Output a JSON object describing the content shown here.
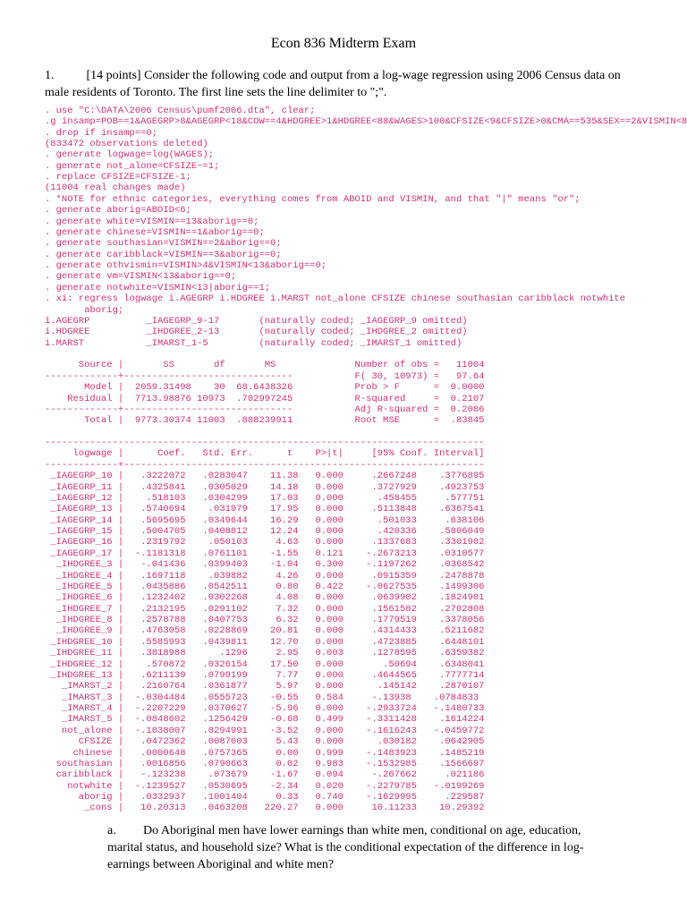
{
  "title": "Econ 836 Midterm Exam",
  "question": {
    "number": "1.",
    "points": "[14 points]",
    "intro": "Consider the following code and output from a log-wage regression using 2006 Census data on male residents of Toronto.  The first line sets the line delimiter to \";\"."
  },
  "code": {
    "color": "#cc3377",
    "font": "Courier New",
    "lines": [
      ". use \"C:\\DATA\\2006 Census\\pumf2006.dta\", clear;",
      ".g insamp=POB==1&AGEGRP>8&AGEGRP<18&COW==4&HDGREE>1&HDGREE<88&WAGES>100&CFSIZE<9&CFSIZE>0&CMA==535&SEX==2&VISMIN<88;",
      ". drop if insamp==0;",
      "(833472 observations deleted)",
      ". generate logwage=log(WAGES);",
      ". generate not_alone=CFSIZE~=1;",
      ". replace CFSIZE=CFSIZE-1;",
      "(11004 real changes made)",
      ". *NOTE for ethnic categories, everything comes from ABOID and VISMIN, and that \"|\" means \"or\";",
      ". generate aborig=ABOID<6;",
      ". generate white=VISMIN==13&aborig==0;",
      ". generate chinese=VISMIN==1&aborig==0;",
      ". generate southasian=VISMIN==2&aborig==0;",
      ". generate caribblack=VISMIN==3&aborig==0;",
      ". generate othvismin=VISMIN>4&VISMIN<13&aborig==0;",
      ". generate vm=VISMIN<13&aborig==0;",
      ". generate notwhite=VISMIN<13|aborig==1;",
      ". xi: regress logwage i.AGEGRP i.HDGREE i.MARST not_alone CFSIZE chinese southasian caribblack notwhite",
      "       aborig;",
      "i.AGEGRP          _IAGEGRP_9-17       (naturally coded; _IAGEGRP_9 omitted)",
      "i.HDGREE          _IHDGREE_2-13       (naturally coded; _IHDGREE_2 omitted)",
      "i.MARST           _IMARST_1-5         (naturally coded; _IMARST_1 omitted)",
      "",
      "      Source |       SS       df       MS              Number of obs =   11004",
      "-------------+------------------------------           F( 30, 10973) =   97.64",
      "       Model |  2059.31498    30  68.6438326           Prob > F      =  0.0000",
      "    Residual |  7713.98876 10973  .702997245           R-squared     =  0.2107",
      "-------------+------------------------------           Adj R-squared =  0.2086",
      "       Total |  9773.30374 11003  .888239911           Root MSE      =  .83845",
      "",
      "------------------------------------------------------------------------------",
      "     logwage |      Coef.   Std. Err.      t    P>|t|     [95% Conf. Interval]",
      "-------------+----------------------------------------------------------------",
      " _IAGEGRP_10 |   .3222072   .0283047    11.38   0.000     .2667248    .3776895",
      " _IAGEGRP_11 |   .4325841   .0305029    14.18   0.000     .3727929    .4923753",
      " _IAGEGRP_12 |    .518103   .0304299    17.03   0.000      .458455     .577751",
      " _IAGEGRP_13 |   .5740694    .031979    17.95   0.000     .5113848    .6367541",
      " _IAGEGRP_14 |   .5695695   .0349644    16.29   0.000      .501033     .638106",
      " _IAGEGRP_15 |   .5004705   .0408812    12.24   0.000      .420336    .5806049",
      " _IAGEGRP_16 |   .2319792    .050103     4.63   0.000     .1337683    .3301902",
      " _IAGEGRP_17 |  -.1181318   .0761101    -1.55   0.121    -.2673213    .0310577",
      "  _IHDGREE_3 |   -.041436   .0399403    -1.04   0.300    -.1197262    .0368542",
      "  _IHDGREE_4 |   .1697118    .039882     4.26   0.000     .0915359    .2478878",
      "  _IHDGREE_5 |   .0435886   .0542511     0.80   0.422    -.0627535    .1499306",
      "  _IHDGREE_6 |   .1232402   .0302268     4.08   0.000     .0639902    .1824901",
      "  _IHDGREE_7 |   .2132195   .0291102     7.32   0.000     .1561582    .2702808",
      "  _IHDGREE_8 |   .2578788   .0407753     6.32   0.000     .1779519    .3378056",
      "  _IHDGREE_9 |   .4763058   .0228869    20.81   0.000     .4314433    .5211682",
      " _IHDGREE_10 |   .5585993   .0439811    12.70   0.000     .4723885    .6448101",
      " _IHDGREE_11 |   .3818988      .1296     2.95   0.003     .1278595    .6359382",
      " _IHDGREE_12 |    .570872   .0326154    17.50   0.000       .50694    .6348041",
      " _IHDGREE_13 |   .6211139   .0799199     7.77   0.000     .4644565    .7777714",
      "   _IMARST_2 |   .2160764   .0361877     5.97   0.000      .145142    .2870107",
      "   _IMARST_3 |  -.0304484   .0555723    -0.55   0.584     -.13938    .0784833",
      "   _IMARST_4 |  -.2207229   .0370627    -5.96   0.000    -.2933724   -.1480733",
      "   _IMARST_5 |  -.0848602   .1256429    -0.68   0.499    -.3311428    .1614224",
      "   not_alone |  -.1038007   .0294991    -3.52   0.000    -.1616243   -.0459772",
      "      CFSIZE |   .0472362   .0087003     5.43   0.000      .030182    .0642905",
      "     chinese |   .0000648   .0757365     0.00   0.999    -.1483923    .1485219",
      "  southasian |   .0016856   .0790663     0.02   0.983    -.1532985    .1566697",
      "  caribblack |   -.123238    .073679    -1.67   0.094     -.267662     .021186",
      "    notwhite |  -.1239527   .0530695    -2.34   0.020    -.2279785   -.0199269",
      "      aborig |   .0332937   .1001404     0.33   0.740    -.1629995     .229587",
      "       _cons |   10.20313   .0463208   220.27   0.000     10.11233    10.29392"
    ]
  },
  "sub": {
    "label": "a.",
    "text": "Do Aboriginal men have lower earnings than white men, conditional on age, education, marital status, and household size?  What is the conditional expectation of the difference in log-earnings between Aboriginal and white men?"
  }
}
